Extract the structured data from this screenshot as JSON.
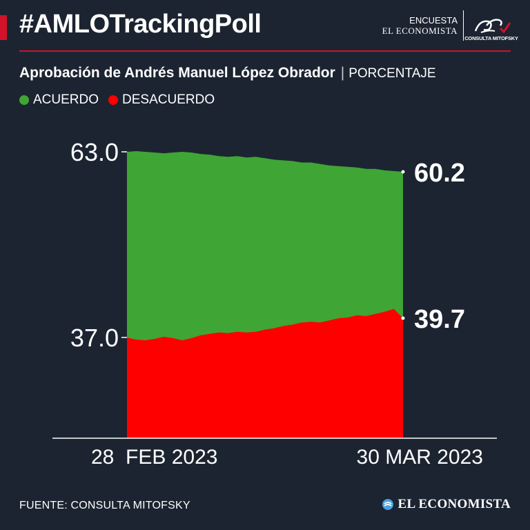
{
  "header": {
    "hashtag": "#AMLOTrackingPoll",
    "brand_encuesta": "ENCUESTA",
    "brand_economista": "EL ECONOMISTA",
    "brand_mitofsky": "CONSULTA MITOFSKY"
  },
  "subtitle": {
    "main": "Aprobación de Andrés Manuel López Obrador",
    "separator": "|",
    "unit": "PORCENTAJE"
  },
  "legend": [
    {
      "label": "ACUERDO",
      "color": "#3fa535"
    },
    {
      "label": "DESACUERDO",
      "color": "#ff0000"
    }
  ],
  "chart_data": {
    "type": "area",
    "x_start_label": "28  FEB 2023",
    "x_end_label": "30 MAR 2023",
    "axis_ticks": [
      "63.0",
      "37.0"
    ],
    "end_labels": [
      "60.2",
      "39.7"
    ],
    "ylim": [
      22.5,
      63.0
    ],
    "series": [
      {
        "name": "ACUERDO",
        "color": "#3fa535",
        "values": [
          63.0,
          63.1,
          63.0,
          62.9,
          62.8,
          62.9,
          63.0,
          62.9,
          62.7,
          62.6,
          62.4,
          62.3,
          62.4,
          62.2,
          62.3,
          62.1,
          61.9,
          61.8,
          61.7,
          61.5,
          61.5,
          61.3,
          61.1,
          61.0,
          60.9,
          60.8,
          60.6,
          60.6,
          60.4,
          60.3,
          60.2
        ]
      },
      {
        "name": "DESACUERDO",
        "color": "#ff0000",
        "values": [
          37.0,
          36.7,
          36.6,
          36.8,
          37.1,
          36.9,
          36.6,
          36.9,
          37.3,
          37.5,
          37.7,
          37.6,
          37.8,
          37.7,
          37.8,
          38.1,
          38.3,
          38.6,
          38.8,
          39.1,
          39.2,
          39.1,
          39.4,
          39.7,
          39.8,
          40.1,
          40.0,
          40.3,
          40.6,
          41.0,
          39.7
        ]
      }
    ]
  },
  "footer": {
    "source": "FUENTE: CONSULTA MITOFSKY",
    "logo": "EL ECONOMISTA"
  }
}
